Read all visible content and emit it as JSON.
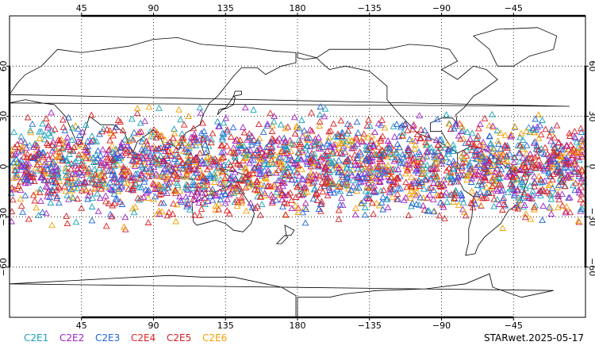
{
  "map": {
    "projection": "cylindrical-equidistant",
    "center_lon": 180,
    "lat_range": [
      -90,
      90
    ],
    "grid": "dotted",
    "x_tick_labels": [
      "45",
      "90",
      "135",
      "180",
      "−135",
      "−90",
      "−45"
    ],
    "x_tick_lons": [
      45,
      90,
      135,
      180,
      -135,
      -90,
      -45
    ],
    "y_tick_labels": [
      "60",
      "30",
      "0",
      "−30",
      "−60"
    ],
    "y_tick_lats": [
      60,
      30,
      0,
      -30,
      -60
    ],
    "observation_band_lat": [
      -40,
      40
    ],
    "marker_shape": "open-triangle"
  },
  "legend": {
    "items": [
      {
        "label": "C2E1",
        "color": "#19a2b8"
      },
      {
        "label": "C2E2",
        "color": "#a020c8"
      },
      {
        "label": "C2E3",
        "color": "#1e64dc"
      },
      {
        "label": "C2E4",
        "color": "#e02020"
      },
      {
        "label": "C2E5",
        "color": "#d21e28"
      },
      {
        "label": "C2E6",
        "color": "#f0a000"
      }
    ]
  },
  "footer": {
    "label": "STARwet.2025-05-17"
  }
}
